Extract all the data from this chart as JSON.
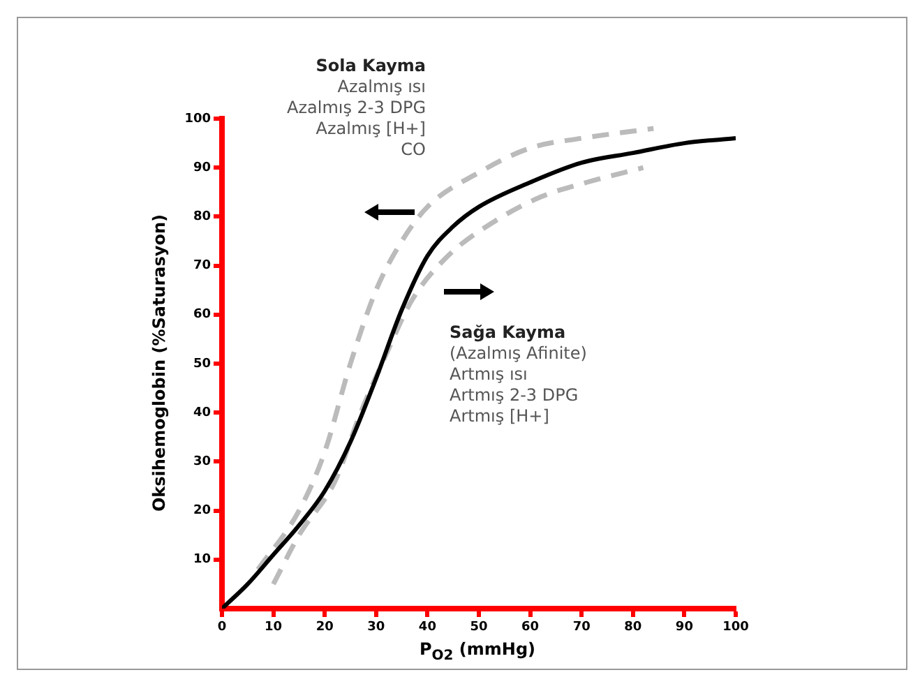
{
  "chart_data": {
    "type": "line",
    "xlabel": "P$_{O2}$ (mmHg)",
    "ylabel": "Oksihemoglobin (%Saturasyon)",
    "annotations": [
      "Sola Kayma\nAzalmış ısı\nAzalmış 2-3 DPG\nAzalmış [H+]\nCO",
      "Sağa Kayma\n(Azalmış Afinite)\nArtmış ısı\nArtmış 2-3 DPG\nArtmış [H+]"
    ],
    "xlim": [
      0,
      100
    ],
    "ylim": [
      0,
      100
    ],
    "xticks": [
      0,
      10,
      20,
      30,
      40,
      50,
      60,
      70,
      80,
      90,
      100
    ],
    "yticks": [
      10,
      20,
      30,
      40,
      50,
      60,
      70,
      80,
      90,
      100
    ],
    "grid": false,
    "legend": false,
    "marker": "none",
    "series": [
      {
        "color": "#000000",
        "line_style": "solid",
        "x": [
          0,
          5,
          10,
          15,
          20,
          25,
          30,
          35,
          40,
          45,
          50,
          60,
          70,
          80,
          90,
          100
        ],
        "values": [
          0,
          5,
          11,
          17,
          24,
          34,
          47,
          61,
          72,
          78,
          82,
          87,
          91,
          93,
          95,
          96
        ]
      },
      {
        "color": "#bbbbbb",
        "line_style": "dashed",
        "x": [
          7,
          15,
          20,
          25,
          30,
          35,
          40,
          50,
          60,
          70,
          84
        ],
        "values": [
          8,
          20,
          32,
          50,
          65,
          75,
          82,
          89,
          94,
          96,
          98
        ]
      },
      {
        "color": "#bbbbbb",
        "line_style": "dashed",
        "x": [
          10,
          15,
          22,
          27,
          32,
          37,
          44,
          53,
          62,
          71,
          82
        ],
        "values": [
          5,
          15,
          26,
          40,
          52,
          63,
          72,
          79,
          84,
          87,
          90
        ]
      }
    ]
  }
}
